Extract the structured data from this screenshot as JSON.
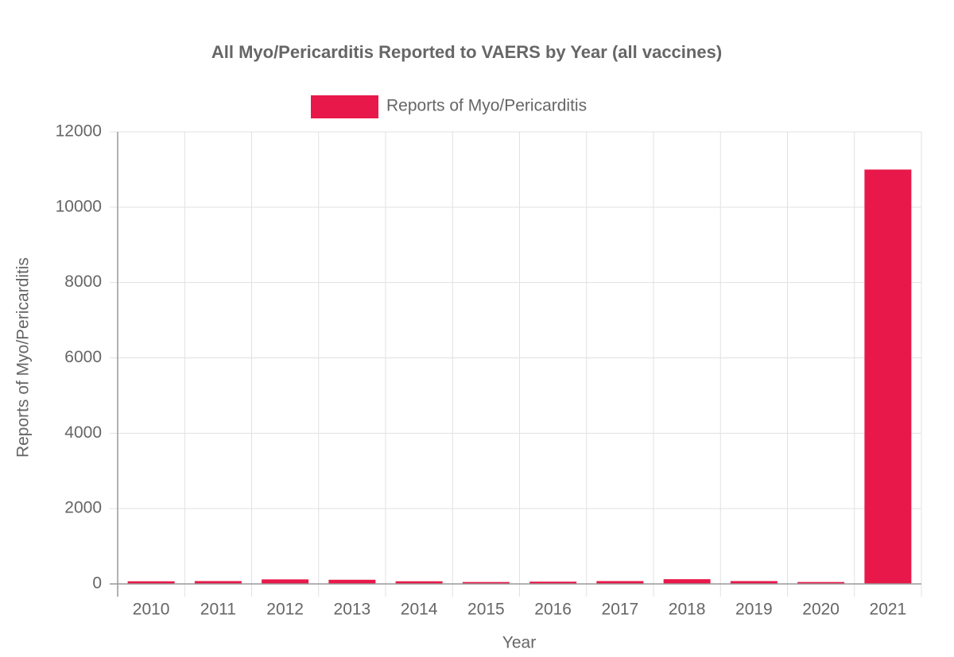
{
  "chart_data": {
    "type": "bar",
    "title": "All Myo/Pericarditis Reported to VAERS by Year (all vaccines)",
    "x_label": "Year",
    "y_label": "Reports of Myo/Pericarditis",
    "categories": [
      "2010",
      "2011",
      "2012",
      "2013",
      "2014",
      "2015",
      "2016",
      "2017",
      "2018",
      "2019",
      "2020",
      "2021"
    ],
    "series": [
      {
        "name": "Reports of Myo/Pericarditis",
        "color": "#e8194a",
        "values": [
          70,
          75,
          120,
          110,
          70,
          50,
          60,
          75,
          125,
          75,
          50,
          11000
        ]
      }
    ],
    "ylim": [
      0,
      12000
    ],
    "yticks": [
      0,
      2000,
      4000,
      6000,
      8000,
      10000,
      12000
    ],
    "grid": true,
    "legend": "top"
  }
}
